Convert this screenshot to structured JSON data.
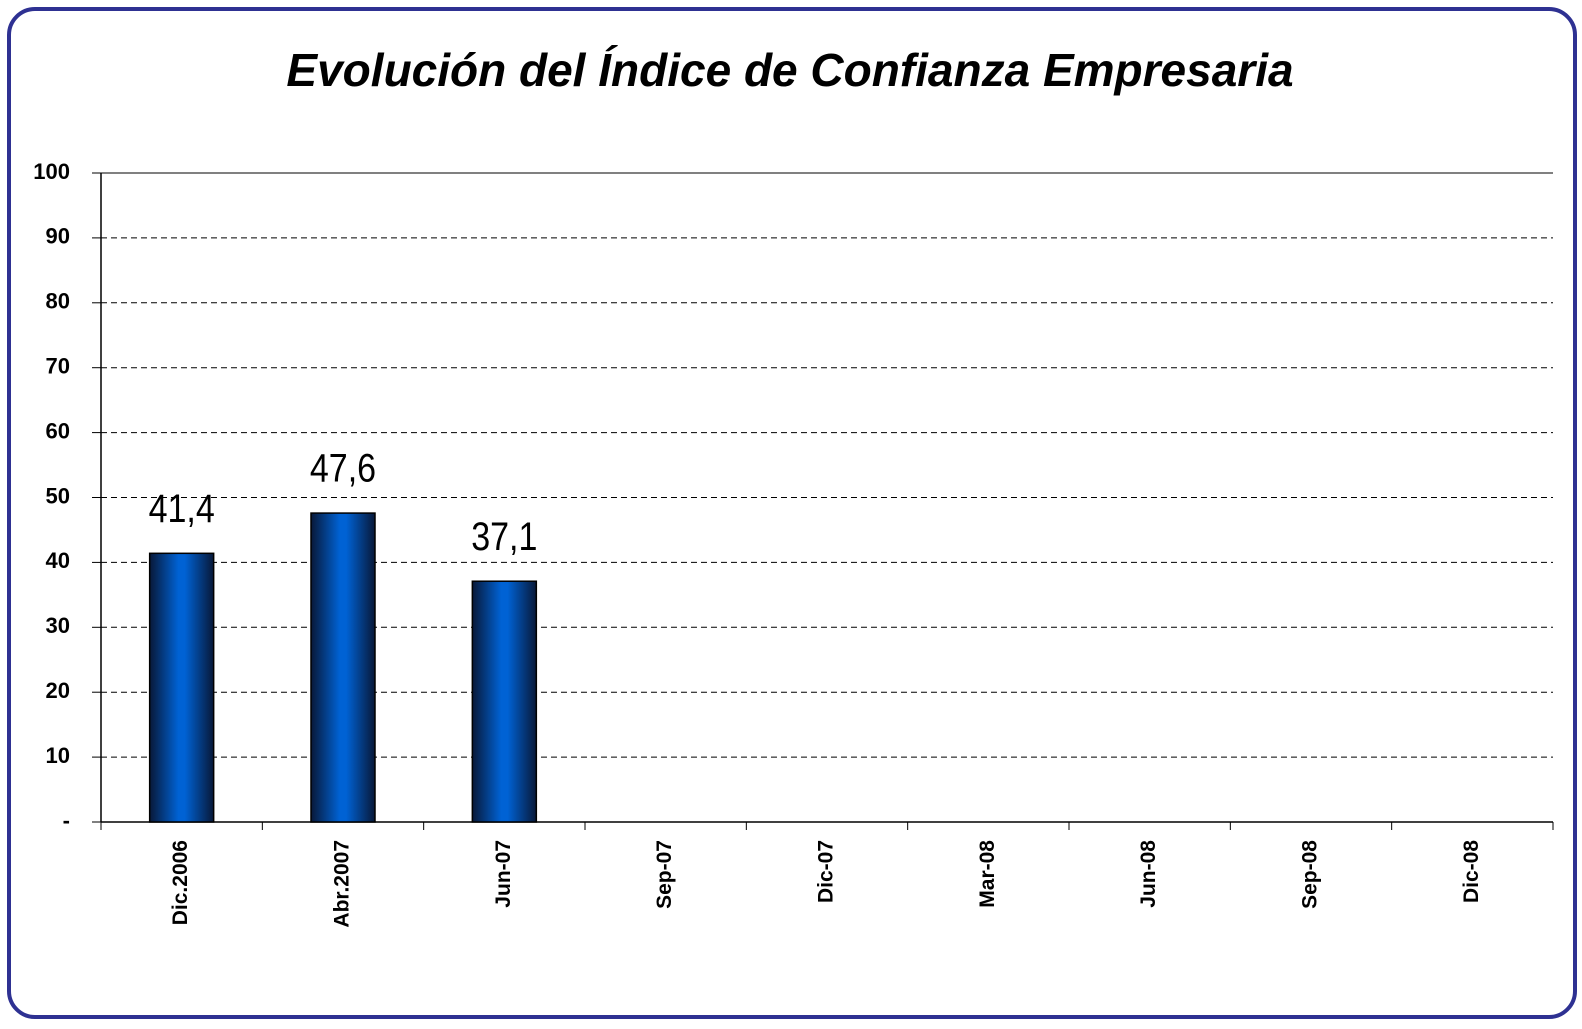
{
  "chart_data": {
    "type": "bar",
    "title": "Evolución del Índice de Confianza Empresaria",
    "categories": [
      "Dic.2006",
      "Abr.2007",
      "Jun-07",
      "Sep-07",
      "Dic-07",
      "Mar-08",
      "Jun-08",
      "Sep-08",
      "Dic-08"
    ],
    "values": [
      41.4,
      47.6,
      37.1,
      null,
      null,
      null,
      null,
      null,
      null
    ],
    "value_labels": [
      "41,4",
      "47,6",
      "37,1",
      null,
      null,
      null,
      null,
      null,
      null
    ],
    "color": "#0060d0",
    "ylim": [
      0,
      100
    ],
    "yticks": [
      {
        "value": 0,
        "label": "-"
      },
      10,
      20,
      30,
      40,
      50,
      60,
      70,
      80,
      90,
      100
    ],
    "grid": true
  }
}
